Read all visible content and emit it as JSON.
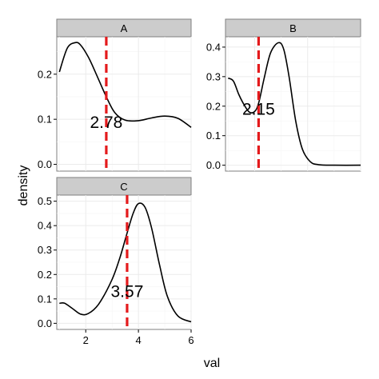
{
  "chart_data": {
    "type": "line",
    "xlabel": "val",
    "ylabel": "density",
    "x_ticks": [
      2,
      4,
      6
    ],
    "mean_line_color": "#e41a1c",
    "line_color": "#000000",
    "panels": [
      {
        "name": "A",
        "xlim": [
          0.9,
          6.0
        ],
        "ylim": [
          -0.015,
          0.283
        ],
        "y_ticks": [
          0.0,
          0.1,
          0.2
        ],
        "y_tick_labels": [
          "0.0",
          "0.1",
          "0.2"
        ],
        "mean": 2.78,
        "mean_label": "2.78",
        "label_y": 0.093,
        "x": [
          1.0,
          1.3,
          1.6,
          1.8,
          2.1,
          2.4,
          2.78,
          3.1,
          3.5,
          4.0,
          4.5,
          5.0,
          5.5,
          6.0
        ],
        "y": [
          0.205,
          0.258,
          0.27,
          0.265,
          0.238,
          0.2,
          0.15,
          0.115,
          0.098,
          0.097,
          0.103,
          0.107,
          0.102,
          0.082
        ]
      },
      {
        "name": "B",
        "xlim": [
          0.9,
          6.0
        ],
        "ylim": [
          -0.02,
          0.435
        ],
        "y_ticks": [
          0.0,
          0.1,
          0.2,
          0.3,
          0.4
        ],
        "y_tick_labels": [
          "0.0",
          "0.1",
          "0.2",
          "0.3",
          "0.4"
        ],
        "mean": 2.15,
        "mean_label": "2.15",
        "label_y": 0.19,
        "x": [
          1.0,
          1.2,
          1.4,
          1.6,
          1.8,
          2.0,
          2.15,
          2.35,
          2.6,
          2.9,
          3.1,
          3.3,
          3.55,
          3.8,
          4.1,
          4.4,
          5.0,
          6.0
        ],
        "y": [
          0.295,
          0.285,
          0.24,
          0.205,
          0.18,
          0.182,
          0.21,
          0.29,
          0.38,
          0.415,
          0.392,
          0.3,
          0.15,
          0.055,
          0.012,
          0.002,
          0.0,
          0.0
        ]
      },
      {
        "name": "C",
        "xlim": [
          0.9,
          6.0
        ],
        "ylim": [
          -0.025,
          0.525
        ],
        "y_ticks": [
          0.0,
          0.1,
          0.2,
          0.3,
          0.4,
          0.5
        ],
        "y_tick_labels": [
          "0.0",
          "0.1",
          "0.2",
          "0.3",
          "0.4",
          "0.5"
        ],
        "mean": 3.57,
        "mean_label": "3.57",
        "label_y": 0.13,
        "x": [
          1.0,
          1.2,
          1.5,
          1.8,
          2.1,
          2.5,
          3.0,
          3.3,
          3.57,
          3.8,
          4.0,
          4.25,
          4.5,
          4.8,
          5.1,
          5.5,
          6.0
        ],
        "y": [
          0.082,
          0.082,
          0.06,
          0.038,
          0.04,
          0.08,
          0.18,
          0.27,
          0.37,
          0.45,
          0.49,
          0.475,
          0.39,
          0.24,
          0.11,
          0.03,
          0.006
        ]
      }
    ]
  }
}
